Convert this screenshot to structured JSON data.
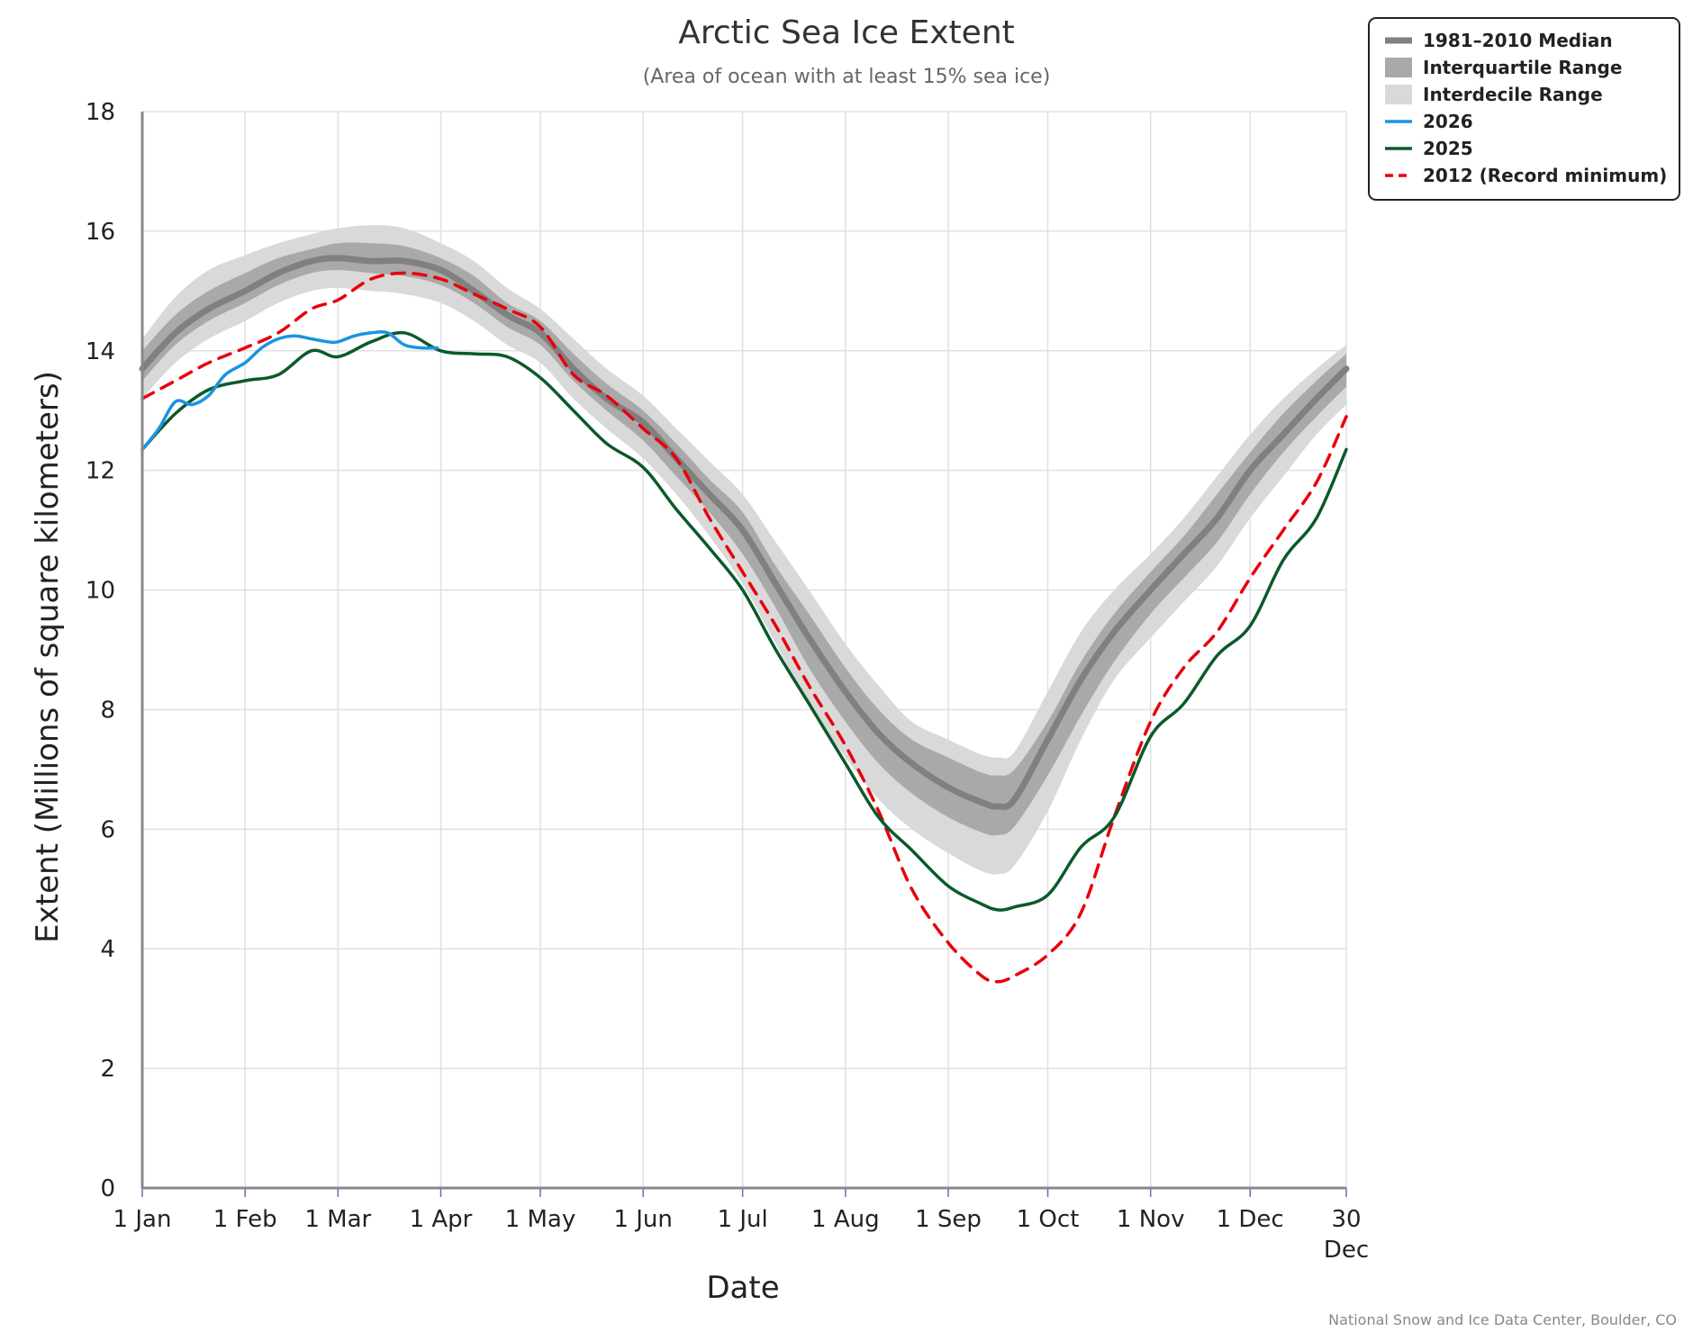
{
  "chart_data": {
    "type": "line",
    "title": "Arctic Sea Ice Extent",
    "subtitle": "(Area of ocean with at least 15% sea ice)",
    "xlabel": "Date",
    "ylabel": "Extent (Millions of square kilometers)",
    "credit": "National Snow and Ice Data Center, Boulder, CO",
    "ylim": [
      0,
      18
    ],
    "yticks": [
      0,
      2,
      4,
      6,
      8,
      10,
      12,
      14,
      16,
      18
    ],
    "ytick_labels": [
      "0",
      "2",
      "4",
      "6",
      "8",
      "10",
      "12",
      "14",
      "16",
      "18"
    ],
    "xlim": [
      "2025-01-01",
      "2025-12-30"
    ],
    "x_ticks": [
      {
        "date": "2025-01-01",
        "label": "1 Jan"
      },
      {
        "date": "2025-02-01",
        "label": "1 Feb"
      },
      {
        "date": "2025-03-01",
        "label": "1 Mar"
      },
      {
        "date": "2025-04-01",
        "label": "1 Apr"
      },
      {
        "date": "2025-05-01",
        "label": "1 May"
      },
      {
        "date": "2025-06-01",
        "label": "1 Jun"
      },
      {
        "date": "2025-07-01",
        "label": "1 Jul"
      },
      {
        "date": "2025-08-01",
        "label": "1 Aug"
      },
      {
        "date": "2025-09-01",
        "label": "1 Sep"
      },
      {
        "date": "2025-10-01",
        "label": "1 Oct"
      },
      {
        "date": "2025-11-01",
        "label": "1 Nov"
      },
      {
        "date": "2025-12-01",
        "label": "1 Dec"
      },
      {
        "date": "2025-12-30",
        "label": "30",
        "label2": "Dec"
      }
    ],
    "grid": true,
    "legend_position": "top-right",
    "colors": {
      "median": "#808080",
      "interquartile": "#a9a9a9",
      "interdecile": "#d9d9d9",
      "y2026": "#1a94e0",
      "y2025": "#0a5a2a",
      "y2012": "#e8000b",
      "grid": "#e0e0e0",
      "axis": "#888888"
    },
    "legend": [
      {
        "label": "1981–2010 Median",
        "kind": "median"
      },
      {
        "label": "Interquartile Range",
        "kind": "interquartile"
      },
      {
        "label": "Interdecile Range",
        "kind": "interdecile"
      },
      {
        "label": "2026",
        "kind": "y2026"
      },
      {
        "label": "2025",
        "kind": "y2025"
      },
      {
        "label": "2012 (Record minimum)",
        "kind": "y2012"
      }
    ],
    "x": [
      "2025-01-01",
      "2025-01-11",
      "2025-01-21",
      "2025-02-01",
      "2025-02-11",
      "2025-02-21",
      "2025-03-01",
      "2025-03-11",
      "2025-03-21",
      "2025-04-01",
      "2025-04-11",
      "2025-04-21",
      "2025-05-01",
      "2025-05-11",
      "2025-05-21",
      "2025-06-01",
      "2025-06-11",
      "2025-06-21",
      "2025-07-01",
      "2025-07-11",
      "2025-07-21",
      "2025-08-01",
      "2025-08-11",
      "2025-08-21",
      "2025-09-01",
      "2025-09-11",
      "2025-09-16",
      "2025-09-21",
      "2025-10-01",
      "2025-10-11",
      "2025-10-21",
      "2025-11-01",
      "2025-11-11",
      "2025-11-21",
      "2025-12-01",
      "2025-12-11",
      "2025-12-21",
      "2025-12-30"
    ],
    "series": [
      {
        "name": "1981–2010 Median",
        "kind": "median",
        "values": [
          13.7,
          14.3,
          14.7,
          15.0,
          15.3,
          15.5,
          15.55,
          15.5,
          15.5,
          15.35,
          15.0,
          14.6,
          14.3,
          13.7,
          13.2,
          12.8,
          12.2,
          11.6,
          11.0,
          10.1,
          9.2,
          8.3,
          7.6,
          7.1,
          6.7,
          6.45,
          6.38,
          6.5,
          7.5,
          8.5,
          9.3,
          10.0,
          10.6,
          11.2,
          12.0,
          12.6,
          13.2,
          13.7
        ]
      },
      {
        "name": "Interquartile Range",
        "kind": "interquartile",
        "lower": [
          13.5,
          14.1,
          14.5,
          14.8,
          15.1,
          15.3,
          15.35,
          15.3,
          15.25,
          15.1,
          14.8,
          14.4,
          14.1,
          13.5,
          13.0,
          12.5,
          11.9,
          11.3,
          10.6,
          9.7,
          8.7,
          7.8,
          7.1,
          6.6,
          6.2,
          5.95,
          5.9,
          6.05,
          6.9,
          7.9,
          8.8,
          9.6,
          10.2,
          10.8,
          11.6,
          12.3,
          12.9,
          13.4
        ],
        "upper": [
          14.0,
          14.6,
          15.0,
          15.3,
          15.55,
          15.7,
          15.8,
          15.8,
          15.75,
          15.55,
          15.25,
          14.8,
          14.5,
          13.95,
          13.45,
          13.0,
          12.45,
          11.85,
          11.3,
          10.4,
          9.6,
          8.7,
          8.0,
          7.5,
          7.2,
          6.95,
          6.9,
          7.0,
          7.8,
          8.8,
          9.6,
          10.3,
          10.9,
          11.6,
          12.3,
          12.95,
          13.5,
          13.95
        ]
      },
      {
        "name": "Interdecile Range",
        "kind": "interdecile",
        "lower": [
          13.2,
          13.8,
          14.2,
          14.5,
          14.8,
          15.0,
          15.05,
          15.0,
          14.95,
          14.8,
          14.5,
          14.1,
          13.8,
          13.2,
          12.7,
          12.2,
          11.6,
          10.9,
          10.1,
          9.1,
          8.1,
          7.2,
          6.5,
          6.0,
          5.6,
          5.3,
          5.25,
          5.4,
          6.3,
          7.5,
          8.5,
          9.2,
          9.8,
          10.4,
          11.2,
          11.9,
          12.6,
          13.1
        ],
        "upper": [
          14.2,
          14.9,
          15.35,
          15.6,
          15.8,
          15.95,
          16.05,
          16.1,
          16.05,
          15.8,
          15.5,
          15.05,
          14.7,
          14.2,
          13.7,
          13.25,
          12.7,
          12.15,
          11.6,
          10.8,
          10.0,
          9.1,
          8.4,
          7.8,
          7.5,
          7.25,
          7.2,
          7.3,
          8.3,
          9.3,
          10.0,
          10.6,
          11.2,
          11.9,
          12.6,
          13.2,
          13.7,
          14.1
        ]
      },
      {
        "name": "2026",
        "kind": "y2026",
        "x": [
          "2025-01-01",
          "2025-01-06",
          "2025-01-11",
          "2025-01-16",
          "2025-01-21",
          "2025-01-26",
          "2025-02-01",
          "2025-02-06",
          "2025-02-11",
          "2025-02-16",
          "2025-02-21",
          "2025-02-26",
          "2025-03-01",
          "2025-03-06",
          "2025-03-11",
          "2025-03-16",
          "2025-03-21",
          "2025-03-26",
          "2025-03-31"
        ],
        "values": [
          12.35,
          12.7,
          13.15,
          13.1,
          13.25,
          13.6,
          13.8,
          14.05,
          14.2,
          14.25,
          14.2,
          14.15,
          14.15,
          14.25,
          14.3,
          14.3,
          14.1,
          14.05,
          14.05
        ]
      },
      {
        "name": "2025",
        "kind": "y2025",
        "values": [
          12.35,
          12.95,
          13.35,
          13.5,
          13.6,
          14.0,
          13.9,
          14.15,
          14.3,
          14.0,
          13.95,
          13.9,
          13.55,
          13.0,
          12.45,
          12.05,
          11.35,
          10.7,
          10.0,
          9.0,
          8.1,
          7.1,
          6.2,
          5.65,
          5.05,
          4.75,
          4.65,
          4.7,
          4.9,
          5.7,
          6.2,
          7.55,
          8.1,
          8.9,
          9.4,
          10.5,
          11.2,
          12.35
        ]
      },
      {
        "name": "2012 (Record minimum)",
        "kind": "y2012",
        "values": [
          13.2,
          13.5,
          13.8,
          14.05,
          14.3,
          14.7,
          14.85,
          15.2,
          15.3,
          15.2,
          14.95,
          14.7,
          14.4,
          13.6,
          13.25,
          12.7,
          12.2,
          11.2,
          10.3,
          9.4,
          8.4,
          7.4,
          6.3,
          5.0,
          4.1,
          3.55,
          3.45,
          3.55,
          3.9,
          4.6,
          6.2,
          7.8,
          8.7,
          9.3,
          10.2,
          11.0,
          11.8,
          12.9
        ]
      }
    ]
  }
}
